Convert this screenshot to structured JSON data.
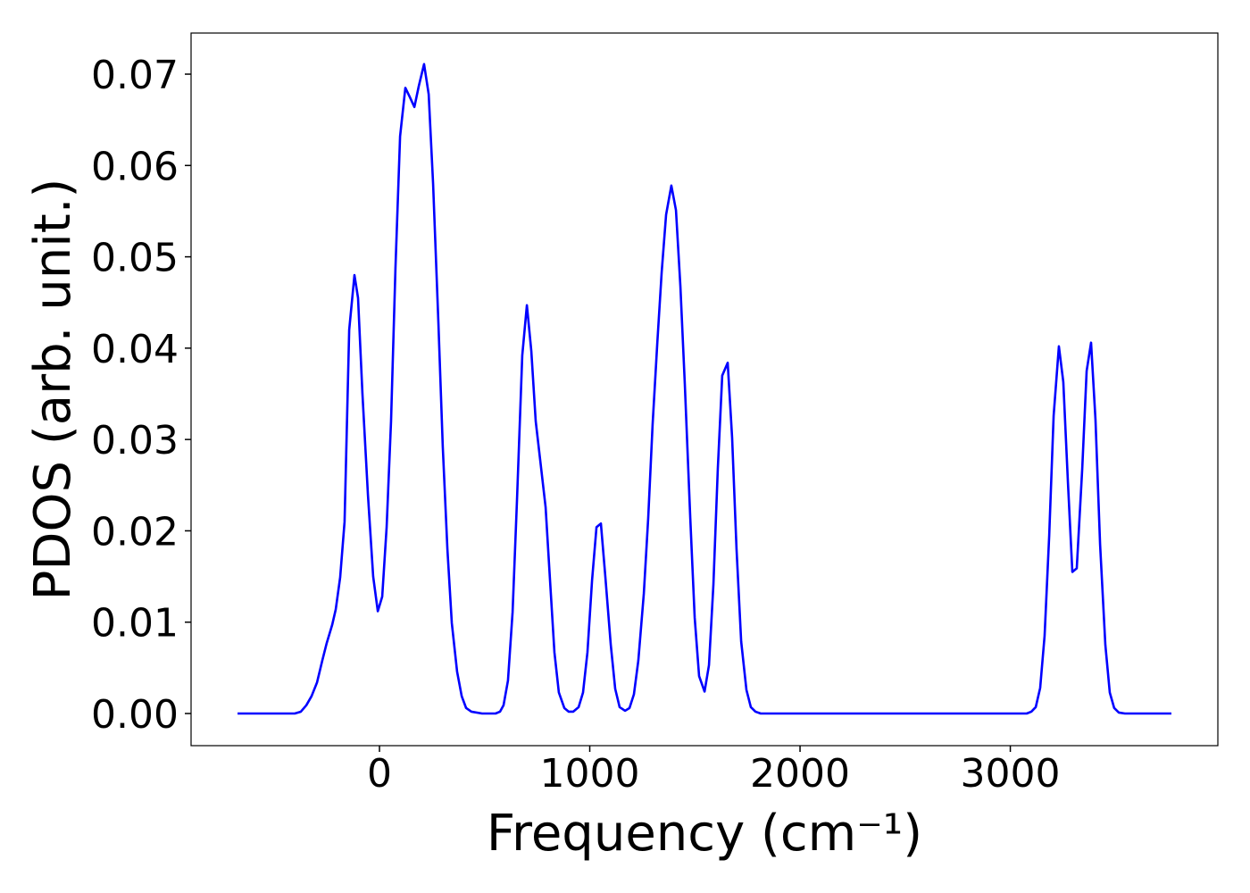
{
  "chart_data": {
    "type": "line",
    "xlabel": "Frequency (cm⁻¹)",
    "ylabel": "PDOS (arb. unit.)",
    "color": "#0000ff",
    "x": [
      -675,
      -403,
      -374,
      -348,
      -323,
      -297,
      -272,
      -251,
      -225,
      -208,
      -187,
      -166,
      -144,
      -119,
      -102,
      -81,
      -55,
      -30,
      -8,
      13,
      34,
      55,
      76,
      98,
      123,
      144,
      166,
      187,
      212,
      234,
      255,
      280,
      301,
      323,
      344,
      369,
      391,
      412,
      437,
      488,
      552,
      573,
      590,
      611,
      633,
      654,
      679,
      701,
      722,
      743,
      764,
      790,
      811,
      832,
      853,
      879,
      900,
      921,
      947,
      968,
      989,
      1011,
      1032,
      1053,
      1074,
      1100,
      1121,
      1142,
      1168,
      1189,
      1210,
      1231,
      1257,
      1278,
      1299,
      1321,
      1342,
      1363,
      1388,
      1410,
      1431,
      1452,
      1478,
      1499,
      1520,
      1546,
      1567,
      1588,
      1609,
      1630,
      1656,
      1677,
      1698,
      1720,
      1745,
      1766,
      1788,
      1813,
      3078,
      3100,
      3121,
      3142,
      3163,
      3185,
      3206,
      3231,
      3252,
      3274,
      3295,
      3316,
      3342,
      3363,
      3384,
      3405,
      3427,
      3452,
      3473,
      3494,
      3516,
      3545,
      3766
    ],
    "values": [
      0,
      0,
      0.0002,
      0.0009,
      0.0019,
      0.0034,
      0.0058,
      0.0077,
      0.0097,
      0.0114,
      0.0149,
      0.021,
      0.042,
      0.048,
      0.0455,
      0.035,
      0.024,
      0.015,
      0.0112,
      0.0128,
      0.0204,
      0.032,
      0.0488,
      0.0632,
      0.0685,
      0.0675,
      0.0664,
      0.0687,
      0.0711,
      0.0678,
      0.058,
      0.0429,
      0.0292,
      0.018,
      0.0099,
      0.0046,
      0.0019,
      0.0006,
      0.0002,
      0,
      0,
      0.0002,
      0.0009,
      0.0036,
      0.0111,
      0.0234,
      0.0392,
      0.0447,
      0.0397,
      0.032,
      0.0278,
      0.0226,
      0.0146,
      0.0067,
      0.0023,
      0.0006,
      0.0002,
      0.0002,
      0.0007,
      0.0023,
      0.0067,
      0.0146,
      0.0204,
      0.0208,
      0.015,
      0.0075,
      0.0027,
      0.0007,
      0.0003,
      0.0006,
      0.0021,
      0.0058,
      0.0131,
      0.0214,
      0.0317,
      0.0405,
      0.0483,
      0.0546,
      0.0578,
      0.0551,
      0.0468,
      0.0361,
      0.0214,
      0.0105,
      0.0041,
      0.0024,
      0.0053,
      0.0141,
      0.0268,
      0.037,
      0.0384,
      0.0302,
      0.018,
      0.0079,
      0.0026,
      0.0007,
      0.0002,
      0,
      0,
      0.0002,
      0.0007,
      0.0028,
      0.0085,
      0.0195,
      0.0326,
      0.0402,
      0.0363,
      0.0253,
      0.0155,
      0.0159,
      0.0268,
      0.0375,
      0.0406,
      0.0322,
      0.0185,
      0.0075,
      0.0023,
      0.0006,
      0.0001,
      0,
      0
    ],
    "xlim": [
      -896,
      3987
    ],
    "ylim": [
      -0.00352,
      0.0745
    ],
    "xticks": [
      0,
      1000,
      2000,
      3000
    ],
    "yticks": [
      {
        "value": 0,
        "label": "0.00"
      },
      {
        "value": 0.01,
        "label": "0.01"
      },
      {
        "value": 0.02,
        "label": "0.02"
      },
      {
        "value": 0.03,
        "label": "0.03"
      },
      {
        "value": 0.04,
        "label": "0.04"
      },
      {
        "value": 0.05,
        "label": "0.05"
      },
      {
        "value": 0.06,
        "label": "0.06"
      },
      {
        "value": 0.07,
        "label": "0.07"
      }
    ],
    "grid": false
  }
}
